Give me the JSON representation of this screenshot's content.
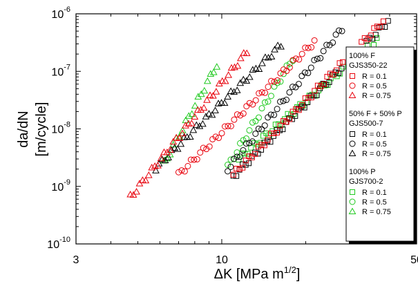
{
  "chart_data": {
    "type": "scatter",
    "x_scale": "log",
    "y_scale": "log",
    "xlim": [
      3,
      50
    ],
    "ylim": [
      1e-10,
      1e-06
    ],
    "grid": false,
    "legend_position": "right",
    "xlabel": {
      "main": "ΔK [MPa m",
      "sup": "1/2",
      "end": "]"
    },
    "ylabel": {
      "line1": "da/dN",
      "line2": "[m/cycle]"
    },
    "x_tick_labels": [
      "3",
      "10",
      "50"
    ],
    "x_tick_values": [
      3,
      10,
      50
    ],
    "y_tick_labels": [
      {
        "base": "10",
        "exp": "-6",
        "value": 1e-06
      },
      {
        "base": "10",
        "exp": "-7",
        "value": 1e-07
      },
      {
        "base": "10",
        "exp": "-8",
        "value": 1e-08
      },
      {
        "base": "10",
        "exp": "-9",
        "value": 1e-09
      },
      {
        "base": "10",
        "exp": "-10",
        "value": 1e-10
      }
    ],
    "legend_groups": [
      {
        "title_line1": "100% F",
        "title_line2": "GJS350-22",
        "color": "#e8000b"
      },
      {
        "title_line1": "50% F + 50% P",
        "title_line2": "GJS500-7",
        "color": "#000000"
      },
      {
        "title_line1": "100% P",
        "title_line2": "GJS700-2",
        "color": "#1ec91e"
      }
    ],
    "series": [
      {
        "name": "R = 0.1",
        "group": 0,
        "marker": "square",
        "color": "#e8000b",
        "x0": 11.0,
        "y0": 1.6e-09,
        "x1": 38.0,
        "y1": 7.5e-07
      },
      {
        "name": "R = 0.5",
        "group": 0,
        "marker": "circle",
        "color": "#e8000b",
        "x0": 7.0,
        "y0": 1.6e-09,
        "x1": 21.5,
        "y1": 3.3e-07
      },
      {
        "name": "R = 0.75",
        "group": 0,
        "marker": "triangle",
        "color": "#e8000b",
        "x0": 4.7,
        "y0": 6.5e-10,
        "x1": 12.3,
        "y1": 2.2e-07
      },
      {
        "name": "R = 0.1",
        "group": 1,
        "marker": "square",
        "color": "#000000",
        "x0": 11.0,
        "y0": 1.5e-09,
        "x1": 39.5,
        "y1": 7.5e-07
      },
      {
        "name": "R = 0.5",
        "group": 1,
        "marker": "circle",
        "color": "#000000",
        "x0": 10.5,
        "y0": 2e-09,
        "x1": 27.0,
        "y1": 5.5e-07
      },
      {
        "name": "R = 0.75",
        "group": 1,
        "marker": "triangle",
        "color": "#000000",
        "x0": 5.8,
        "y0": 2.1e-09,
        "x1": 16.3,
        "y1": 2.9e-07
      },
      {
        "name": "R = 0.1",
        "group": 2,
        "marker": "square",
        "color": "#1ec91e",
        "x0": 11.5,
        "y0": 3e-09,
        "x1": 36.0,
        "y1": 3.5e-07
      },
      {
        "name": "R = 0.5",
        "group": 2,
        "marker": "circle",
        "color": "#1ec91e",
        "x0": 10.5,
        "y0": 2.2e-09,
        "x1": 18.0,
        "y1": 1.7e-07
      },
      {
        "name": "R = 0.75",
        "group": 2,
        "marker": "triangle",
        "color": "#1ec91e",
        "x0": 6.2,
        "y0": 2.5e-09,
        "x1": 9.6,
        "y1": 1.3e-07
      }
    ]
  }
}
